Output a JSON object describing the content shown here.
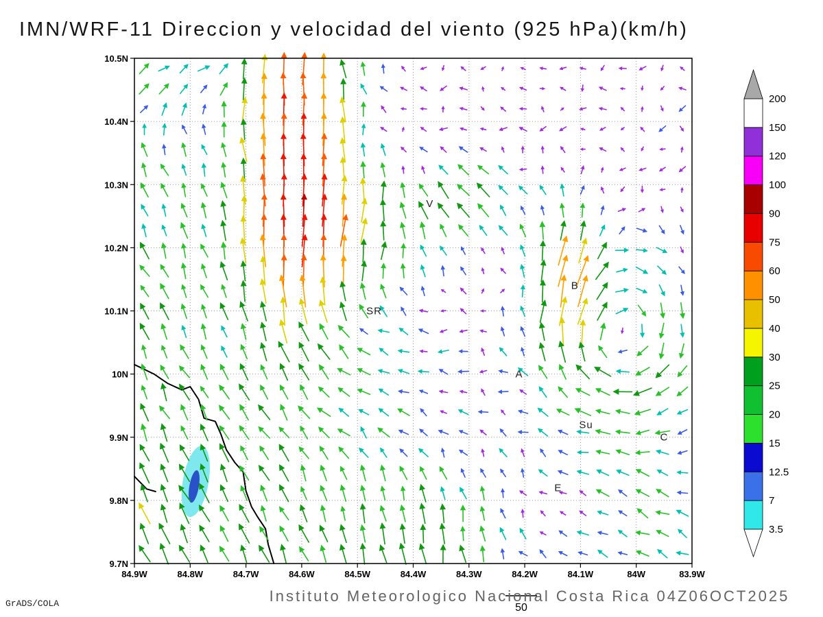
{
  "title": "IMN/WRF-11 Direccion y velocidad del viento (925 hPa)(km/h)",
  "footer": {
    "institution": "Instituto Meteorologico Nacional Costa Rica 04Z06OCT2025",
    "credit": "GrADS/COLA",
    "reference_label": "50"
  },
  "chart_data": {
    "type": "vector_field",
    "variable": "wind direction and speed",
    "level_hpa": 925,
    "units": "km/h",
    "lon_range_w": [
      84.9,
      83.9
    ],
    "lat_range_n": [
      9.7,
      10.5
    ],
    "x_ticks": [
      [
        84.9,
        "84.9W"
      ],
      [
        84.8,
        "84.8W"
      ],
      [
        84.7,
        "84.7W"
      ],
      [
        84.6,
        "84.6W"
      ],
      [
        84.5,
        "84.5W"
      ],
      [
        84.4,
        "84.4W"
      ],
      [
        84.3,
        "84.3W"
      ],
      [
        84.2,
        "84.2W"
      ],
      [
        84.1,
        "84.1W"
      ],
      [
        84.0,
        "84W"
      ],
      [
        83.9,
        "83.9W"
      ]
    ],
    "y_ticks": [
      [
        10.5,
        "10.5N"
      ],
      [
        10.4,
        "10.4N"
      ],
      [
        10.3,
        "10.3N"
      ],
      [
        10.2,
        "10.2N"
      ],
      [
        10.1,
        "10.1N"
      ],
      [
        10.0,
        "10N"
      ],
      [
        9.9,
        "9.9N"
      ],
      [
        9.8,
        "9.8N"
      ],
      [
        9.7,
        "9.7N"
      ]
    ],
    "grid": {
      "nx": 28,
      "ny": 25
    },
    "arrow_scale": {
      "len_base": 6,
      "len_per_kmh": 0.8,
      "len_max": 48
    },
    "reference_speed": 50,
    "style": {
      "grid_color": "#9A9A9A",
      "frame_color": "#000000",
      "coast_color": "#000000",
      "background": "#FFFFFF"
    },
    "colorbar": {
      "levels": [
        3.5,
        7,
        12.5,
        15,
        20,
        25,
        30,
        40,
        50,
        60,
        75,
        90,
        100,
        120,
        150,
        200
      ],
      "segment_colors": [
        "#30E8E8",
        "#3A70E8",
        "#0A0AD0",
        "#2EE02E",
        "#10C030",
        "#00A01E",
        "#F5F500",
        "#E8C000",
        "#FF9000",
        "#F84A00",
        "#E80000",
        "#A80000",
        "#F800F8",
        "#9030D8",
        "#FFFFFF"
      ],
      "below_color": "#FFFFFF",
      "above_color": "#A8A8A8"
    },
    "arrow_palette": {
      "thresholds": [
        9,
        13,
        18,
        26,
        36,
        48,
        60,
        75,
        90
      ],
      "colors": [
        "#A428E0",
        "#3A5BE8",
        "#00C0B0",
        "#28C228",
        "#109810",
        "#E0D000",
        "#FFA000",
        "#FF5A00",
        "#EE1500",
        "#C00000"
      ]
    },
    "stations": [
      {
        "label": "V",
        "lon_w": 84.37,
        "lat_n": 10.27
      },
      {
        "label": "B",
        "lon_w": 84.11,
        "lat_n": 10.14
      },
      {
        "label": "SR",
        "lon_w": 84.47,
        "lat_n": 10.1
      },
      {
        "label": "A",
        "lon_w": 84.21,
        "lat_n": 10.0
      },
      {
        "label": "Su",
        "lon_w": 84.09,
        "lat_n": 9.92
      },
      {
        "label": "C",
        "lon_w": 83.95,
        "lat_n": 9.9
      },
      {
        "label": "E",
        "lon_w": 84.14,
        "lat_n": 9.82
      }
    ],
    "background_flow": {
      "u": -2.5,
      "v": -1.5,
      "noise": 5
    },
    "flow_regions": [
      {
        "name": "pacific-onshore",
        "lon_w": 84.95,
        "lat_n": 10.05,
        "sigma_lon": 0.28,
        "sigma_lat": 0.55,
        "u": -6,
        "v": 22
      },
      {
        "name": "southwest-coastal-band",
        "lon_w": 84.72,
        "lat_n": 9.7,
        "sigma_lon": 0.3,
        "sigma_lat": 0.16,
        "u": -6,
        "v": 14
      },
      {
        "name": "north-jet",
        "lon_w": 84.61,
        "lat_n": 10.38,
        "sigma_lon": 0.065,
        "sigma_lat": 0.2,
        "u": 2,
        "v": 70
      },
      {
        "name": "jet-fan-south",
        "lon_w": 84.54,
        "lat_n": 10.22,
        "sigma_lon": 0.11,
        "sigma_lat": 0.07,
        "u": 10,
        "v": 32
      },
      {
        "name": "fan-west",
        "lon_w": 84.31,
        "lat_n": 10.27,
        "sigma_lon": 0.07,
        "sigma_lat": 0.05,
        "u": -16,
        "v": 20
      },
      {
        "name": "central-westerly",
        "lon_w": 84.5,
        "lat_n": 10.0,
        "sigma_lon": 0.16,
        "sigma_lat": 0.09,
        "u": -11,
        "v": 0
      },
      {
        "name": "b-jet",
        "lon_w": 84.12,
        "lat_n": 10.16,
        "sigma_lon": 0.05,
        "sigma_lat": 0.08,
        "u": 4,
        "v": 44
      },
      {
        "name": "bottom-updraft",
        "lon_w": 84.38,
        "lat_n": 9.73,
        "sigma_lon": 0.11,
        "sigma_lat": 0.1,
        "u": 2,
        "v": 22
      },
      {
        "name": "southeast-flow",
        "lon_w": 83.96,
        "lat_n": 9.77,
        "sigma_lon": 0.13,
        "sigma_lat": 0.09,
        "u": -12,
        "v": 9
      },
      {
        "name": "nw-corner-easterly",
        "lon_w": 84.84,
        "lat_n": 10.47,
        "sigma_lon": 0.12,
        "sigma_lat": 0.05,
        "u": 22,
        "v": -4
      }
    ],
    "vortices": [
      {
        "name": "east-eddy",
        "lon_w": 84.03,
        "lat_n": 10.06,
        "sigma": 0.09,
        "strength": 380
      }
    ],
    "shaded_patches": [
      {
        "name": "calm-area-outer",
        "color": "#7FE8EE",
        "lon_w": 84.79,
        "lat_n": 9.83,
        "rx_deg": 0.023,
        "ry_deg": 0.057,
        "rotation_deg": 10
      },
      {
        "name": "calm-area-core",
        "color": "#2A52C8",
        "lon_w": 84.793,
        "lat_n": 9.822,
        "rx_deg": 0.0085,
        "ry_deg": 0.026,
        "rotation_deg": 10
      }
    ],
    "coastline_segments": [
      [
        [
          84.9,
          10.015
        ],
        [
          84.865,
          10.0
        ],
        [
          84.84,
          9.985
        ],
        [
          84.815,
          9.975
        ],
        [
          84.8,
          9.98
        ],
        [
          84.785,
          9.96
        ],
        [
          84.775,
          9.93
        ],
        [
          84.755,
          9.925
        ],
        [
          84.745,
          9.905
        ],
        [
          84.735,
          9.88
        ],
        [
          84.72,
          9.86
        ],
        [
          84.705,
          9.845
        ],
        [
          84.7,
          9.815
        ],
        [
          84.69,
          9.79
        ],
        [
          84.68,
          9.775
        ],
        [
          84.665,
          9.755
        ],
        [
          84.66,
          9.73
        ],
        [
          84.65,
          9.7
        ]
      ],
      [
        [
          84.9,
          9.838
        ],
        [
          84.878,
          9.818
        ],
        [
          84.862,
          9.814
        ]
      ]
    ]
  }
}
